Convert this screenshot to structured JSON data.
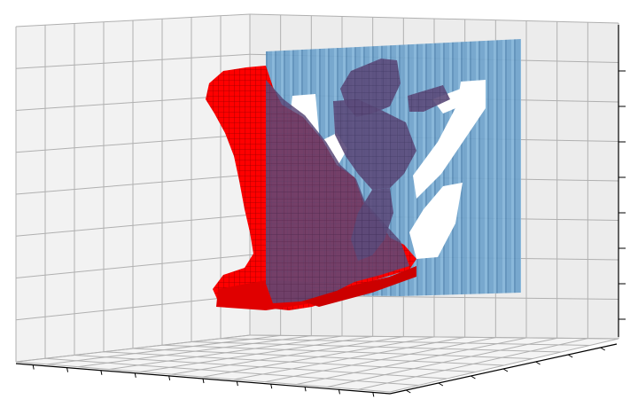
{
  "figure": {
    "kind": "3d-voxel-plot",
    "tick_labels_visible": false,
    "grid": true,
    "pane_color": "#f2f2f2",
    "grid_color": "#b0b0b0",
    "axis_color": "#000000",
    "ticks": {
      "bottom_left": 11,
      "bottom_right": 7,
      "right_vertical": 8
    },
    "voxel_sets": [
      {
        "name": "red-object",
        "color": "#ff0000",
        "edge_color": "#8b0000",
        "alpha": 1.0
      },
      {
        "name": "blue-object",
        "color": "#6a9ec8",
        "edge_color": "#4a7fa8",
        "alpha": 0.75
      }
    ]
  }
}
